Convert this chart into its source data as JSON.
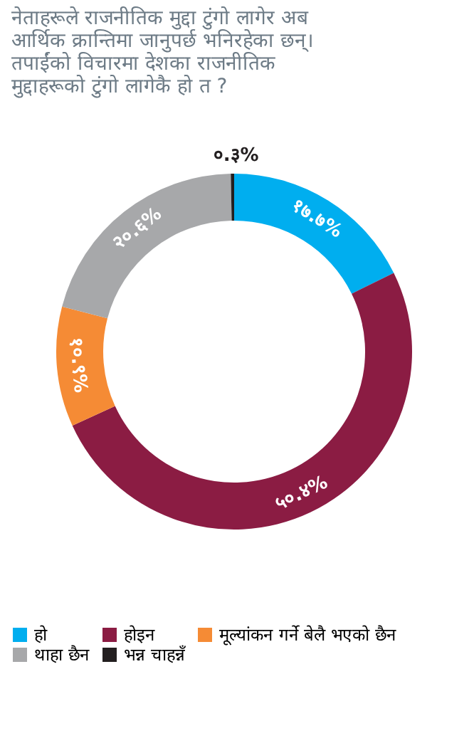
{
  "chart_data": {
    "type": "donut",
    "title": "नेताहरूले राजनीतिक मुद्दा टुंगो लागेर अब आर्थिक क्रान्तिमा जानुपर्छ भनिरहेका छन्। तपाईंको विचारमा देशका राजनीतिक मुद्दाहरूको टुंगो लागेकै हो त ?",
    "categories": [
      "हो",
      "होइन",
      "मूल्यांकन गर्ने बेलै भएको छैन",
      "थाहा छैन",
      "भन्न चाहन्नँ"
    ],
    "values": [
      17.7,
      50.4,
      10.9,
      20.6,
      0.3
    ],
    "value_labels": [
      "१७.७%",
      "५०.४%",
      "१०.९%",
      "२०.६%",
      "०.३%"
    ],
    "colors": [
      "#00aeef",
      "#8b1c43",
      "#f58b35",
      "#a7a8aa",
      "#231f20"
    ],
    "legend": "bottom"
  }
}
